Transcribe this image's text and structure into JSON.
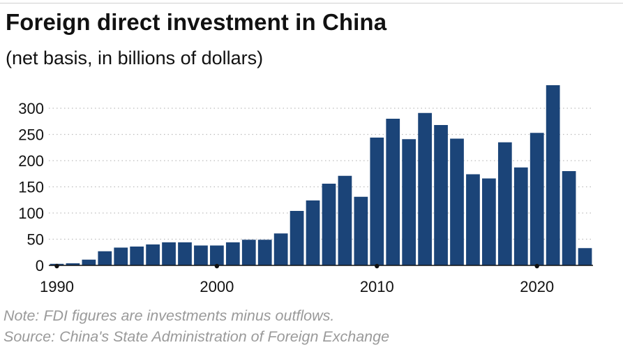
{
  "title": "Foreign direct investment in China",
  "subtitle": "(net basis, in billions of dollars)",
  "note": "Note: FDI figures are investments minus outflows.",
  "source": "Source: China's State Administration of Foreign Exchange",
  "colors": {
    "bar": "#1b4478",
    "grid": "#bdbdbd",
    "axis": "#111111"
  },
  "chart_data": {
    "type": "bar",
    "title": "Foreign direct investment in China",
    "subtitle": "(net basis, in billions of dollars)",
    "x": [
      1990,
      1991,
      1992,
      1993,
      1994,
      1995,
      1996,
      1997,
      1998,
      1999,
      2000,
      2001,
      2002,
      2003,
      2004,
      2005,
      2006,
      2007,
      2008,
      2009,
      2010,
      2011,
      2012,
      2013,
      2014,
      2015,
      2016,
      2017,
      2018,
      2019,
      2020,
      2021,
      2022,
      2023
    ],
    "values": [
      3,
      4,
      11,
      27,
      34,
      36,
      40,
      44,
      44,
      38,
      38,
      44,
      49,
      49,
      61,
      104,
      124,
      156,
      171,
      131,
      244,
      280,
      241,
      291,
      268,
      242,
      174,
      166,
      235,
      187,
      253,
      344,
      180,
      33
    ],
    "ylim": [
      0,
      350
    ],
    "yticks": [
      0,
      50,
      100,
      150,
      200,
      250,
      300
    ],
    "xticks": [
      1990,
      2000,
      2010,
      2020
    ],
    "grid": "horizontal dotted",
    "legend": "none"
  }
}
